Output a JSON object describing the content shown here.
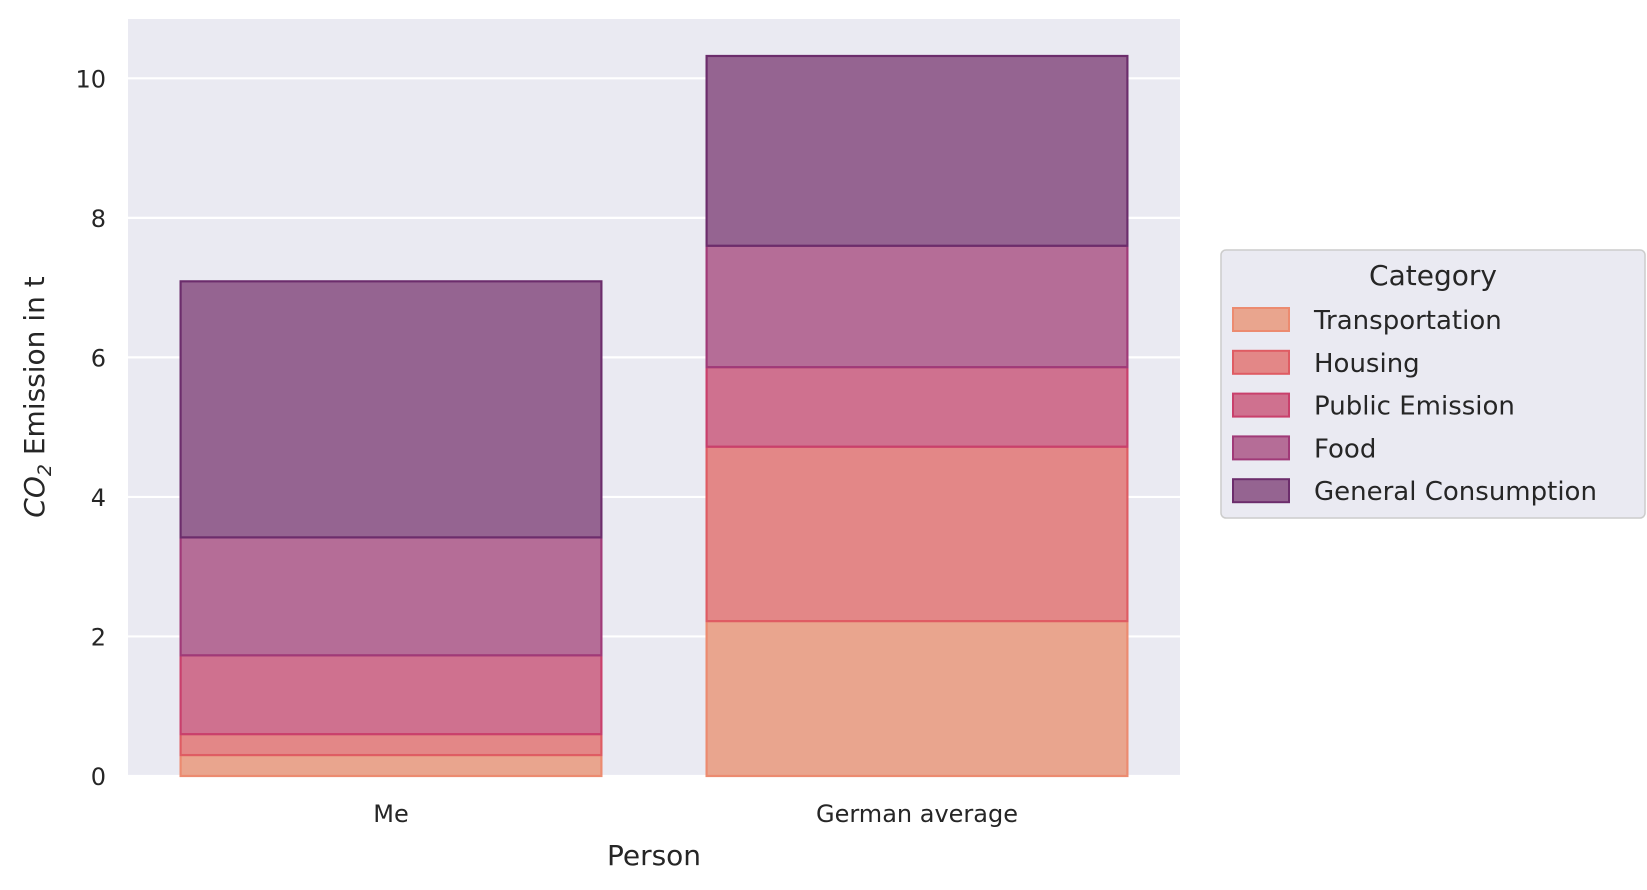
{
  "chart_data": {
    "type": "bar",
    "stacked": true,
    "categories": [
      "Me",
      "German average"
    ],
    "xlabel": "Person",
    "ylabel": {
      "prefix": "CO",
      "subscript": "2",
      "suffix": " Emission in t"
    },
    "ylim": [
      0,
      10.85
    ],
    "yticks": [
      0,
      2,
      4,
      6,
      8,
      10
    ],
    "grid": true,
    "legend": {
      "title": "Category",
      "position": "right"
    },
    "series": [
      {
        "name": "Transportation",
        "values": [
          0.3,
          2.22
        ],
        "fill": "#e9a58e",
        "stroke": "#ec8b70"
      },
      {
        "name": "Housing",
        "values": [
          0.3,
          2.5
        ],
        "fill": "#e38787",
        "stroke": "#df5c63"
      },
      {
        "name": "Public Emission",
        "values": [
          1.13,
          1.14
        ],
        "fill": "#cf718f",
        "stroke": "#c9406c"
      },
      {
        "name": "Food",
        "values": [
          1.69,
          1.74
        ],
        "fill": "#b56d97",
        "stroke": "#a03a78"
      },
      {
        "name": "General Consumption",
        "values": [
          3.67,
          2.72
        ],
        "fill": "#956491",
        "stroke": "#6c2d6c"
      }
    ]
  }
}
